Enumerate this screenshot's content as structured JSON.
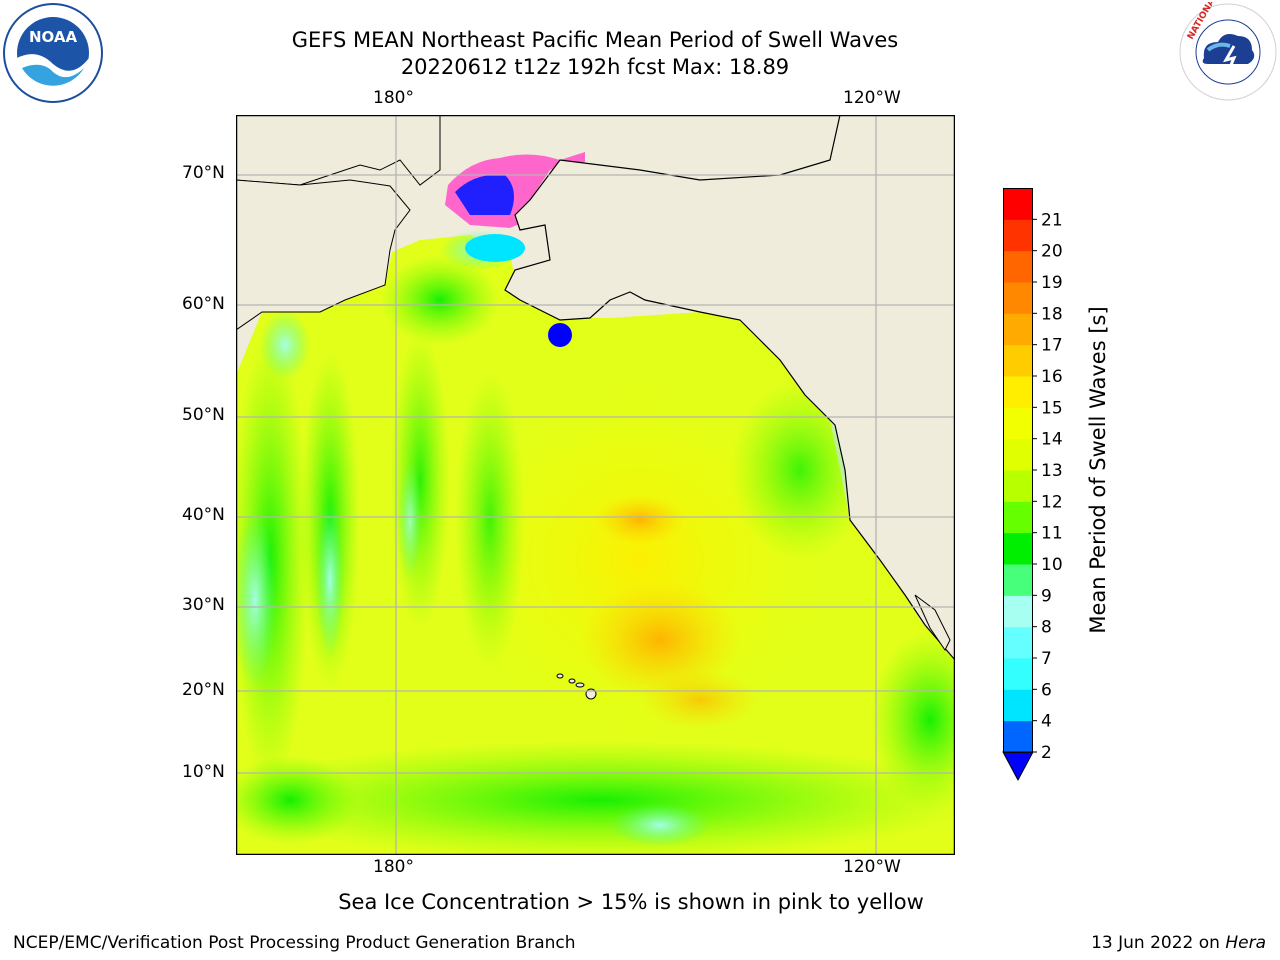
{
  "header": {
    "title_line1": "GEFS MEAN Northeast Pacific Mean Period of Swell Waves",
    "title_line2": "20220612 t12z 192h fcst   Max: 18.89"
  },
  "logos": {
    "left": {
      "name": "noaa-logo",
      "text": "NOAA"
    },
    "right": {
      "name": "nws-logo",
      "text": "NATIONAL WEATHER SERVICE"
    }
  },
  "map": {
    "lon_labels_top": [
      "180°",
      "120°W"
    ],
    "lon_labels_bottom": [
      "180°",
      "120°W"
    ],
    "lat_labels": [
      "70°N",
      "60°N",
      "50°N",
      "40°N",
      "30°N",
      "20°N",
      "10°N"
    ],
    "colors": {
      "land": "#efecdb",
      "grid": "#b4b4b4",
      "coast": "#000000"
    }
  },
  "colorbar": {
    "label": "Mean Period of Swell Waves [s]",
    "ticks": [
      "2",
      "4",
      "6",
      "7",
      "8",
      "9",
      "10",
      "11",
      "12",
      "13",
      "14",
      "15",
      "16",
      "17",
      "18",
      "19",
      "20",
      "21"
    ],
    "colors": [
      "#0066ff",
      "#00e5ff",
      "#33ffff",
      "#66ffff",
      "#a6fff0",
      "#47ff7a",
      "#00ee00",
      "#66ff00",
      "#b8ff00",
      "#e0ff00",
      "#f2ff00",
      "#ffee00",
      "#ffcc00",
      "#ffaa00",
      "#ff8800",
      "#ff6600",
      "#ff3300",
      "#ff0000"
    ],
    "under_color": "#0000ff"
  },
  "note": "Sea Ice Concentration > 15% is shown in pink to yellow",
  "footer": {
    "left": "NCEP/EMC/Verification Post Processing Product Generation Branch",
    "right_prefix": "13 Jun 2022 on",
    "right_host": "Hera"
  }
}
